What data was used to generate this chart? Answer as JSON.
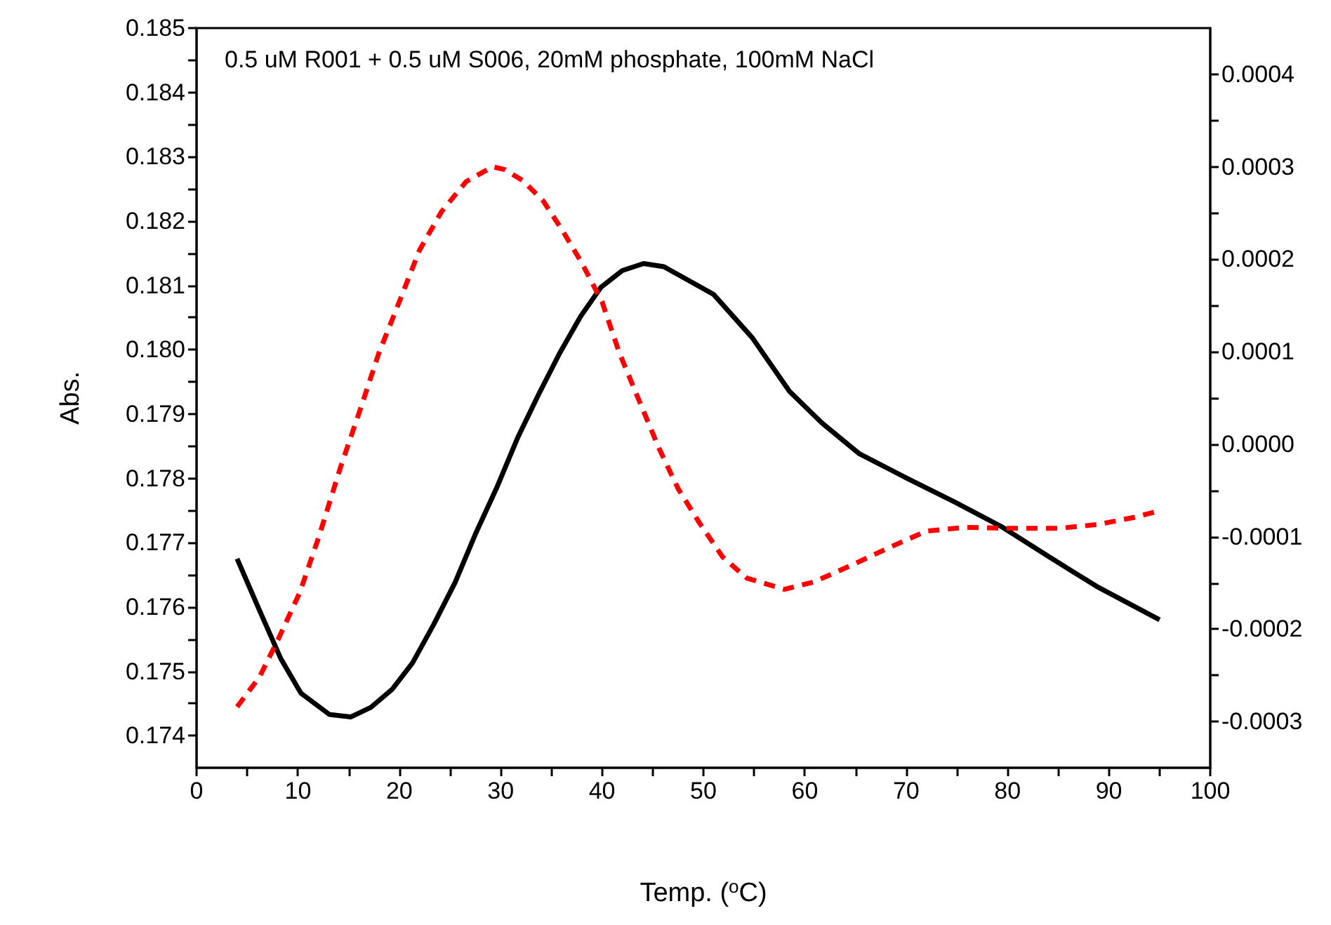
{
  "chart_data": {
    "type": "line",
    "annotations": [
      "0.5 uM R001 + 0.5 uM S006, 20mM phosphate, 100mM NaCl"
    ],
    "xlabel": "Temp. ($^{o}$C)",
    "ylabel": "Abs.",
    "xlim": [
      0,
      100
    ],
    "xticks": [
      0,
      {
        "value": 5,
        "label": null
      },
      10,
      {
        "value": 15,
        "label": null
      },
      20,
      {
        "value": 25,
        "label": null
      },
      30,
      {
        "value": 35,
        "label": null
      },
      40,
      {
        "value": 45,
        "label": null
      },
      50,
      {
        "value": 55,
        "label": null
      },
      60,
      {
        "value": 65,
        "label": null
      },
      70,
      {
        "value": 75,
        "label": null
      },
      80,
      {
        "value": 85,
        "label": null
      },
      90,
      {
        "value": 95,
        "label": null
      },
      100
    ],
    "ylim": [
      0.1735,
      0.185
    ],
    "yticks": [
      0.174,
      {
        "value": 0.1745,
        "label": null
      },
      0.175,
      {
        "value": 0.1755,
        "label": null
      },
      0.176,
      {
        "value": 0.1765,
        "label": null
      },
      0.177,
      {
        "value": 0.1775,
        "label": null
      },
      0.178,
      {
        "value": 0.1785,
        "label": null
      },
      0.179,
      {
        "value": 0.1795,
        "label": null
      },
      {
        "value": 0.18,
        "label": "0.180"
      },
      {
        "value": 0.1805,
        "label": null
      },
      0.181,
      {
        "value": 0.1815,
        "label": null
      },
      0.182,
      {
        "value": 0.1825,
        "label": null
      },
      0.183,
      {
        "value": 0.1835,
        "label": null
      },
      0.184,
      {
        "value": 0.1845,
        "label": null
      },
      0.185
    ],
    "y2lim": [
      -0.00035,
      0.00045
    ],
    "y2ticks": [
      {
        "value": -0.0003,
        "label": "-0.0003"
      },
      {
        "value": -0.00025,
        "label": null
      },
      {
        "value": -0.0002,
        "label": "-0.0002"
      },
      {
        "value": -0.00015,
        "label": null
      },
      {
        "value": -0.0001,
        "label": "-0.0001"
      },
      {
        "value": -5e-05,
        "label": null
      },
      {
        "value": 0,
        "label": "0.0000"
      },
      {
        "value": 5e-05,
        "label": null
      },
      {
        "value": 0.0001,
        "label": "0.0001"
      },
      {
        "value": 0.00015,
        "label": null
      },
      {
        "value": 0.0002,
        "label": "0.0002"
      },
      {
        "value": 0.00025,
        "label": null
      },
      {
        "value": 0.0003,
        "label": "0.0003"
      },
      {
        "value": 0.00035,
        "label": null
      },
      {
        "value": 0.0004,
        "label": "0.0004"
      }
    ],
    "series": [
      {
        "color": "#000000",
        "line_style": "solid",
        "x": [
          4.0,
          6.2,
          8.3,
          10.3,
          13.1,
          15.2,
          17.2,
          19.3,
          21.3,
          23.4,
          25.5,
          27.5,
          29.6,
          31.7,
          33.7,
          35.8,
          37.9,
          39.9,
          42.0,
          44.1,
          46.1,
          51.0,
          54.8,
          58.5,
          61.7,
          65.4,
          70.1,
          74.8,
          79.5,
          84.2,
          88.8,
          95.0
        ],
        "values": [
          0.17675,
          0.17595,
          0.1752,
          0.17466,
          0.17433,
          0.17429,
          0.17444,
          0.17472,
          0.17513,
          0.17573,
          0.17638,
          0.17713,
          0.17785,
          0.17864,
          0.17929,
          0.17994,
          0.18052,
          0.18097,
          0.18123,
          0.18134,
          0.18129,
          0.18086,
          0.18019,
          0.17935,
          0.17886,
          0.17838,
          0.178,
          0.17763,
          0.17724,
          0.17677,
          0.17632,
          0.1758
        ]
      },
      {
        "color": "#ff0000",
        "line_style": "dashed",
        "axis": "y2",
        "x": [
          4.0,
          6.2,
          8.1,
          10.2,
          12.1,
          14.2,
          16.1,
          18.0,
          20.0,
          22.0,
          24.2,
          26.6,
          29.2,
          30.4,
          32.2,
          34.2,
          36.1,
          38.0,
          40.0,
          41.7,
          43.7,
          45.6,
          47.5,
          49.6,
          51.9,
          54.3,
          58.0,
          60.9,
          64.6,
          68.3,
          72.0,
          75.8,
          80.4,
          85.1,
          88.8,
          92.6,
          95.0
        ],
        "values": [
          -0.000284,
          -0.000252,
          -0.00021,
          -0.00016,
          -9.9e-05,
          -2.5e-05,
          3.6e-05,
          9.9e-05,
          0.000154,
          0.00021,
          0.000252,
          0.000284,
          0.0003,
          0.000297,
          0.000285,
          0.000263,
          0.000231,
          0.000196,
          0.000154,
          9.9e-05,
          4.6e-05,
          -4e-06,
          -4.8e-05,
          -8.5e-05,
          -0.000122,
          -0.000145,
          -0.000157,
          -0.000149,
          -0.000131,
          -0.000112,
          -9.4e-05,
          -9e-05,
          -9.1e-05,
          -9.1e-05,
          -8.7e-05,
          -7.9e-05,
          -7.2e-05
        ]
      }
    ]
  }
}
